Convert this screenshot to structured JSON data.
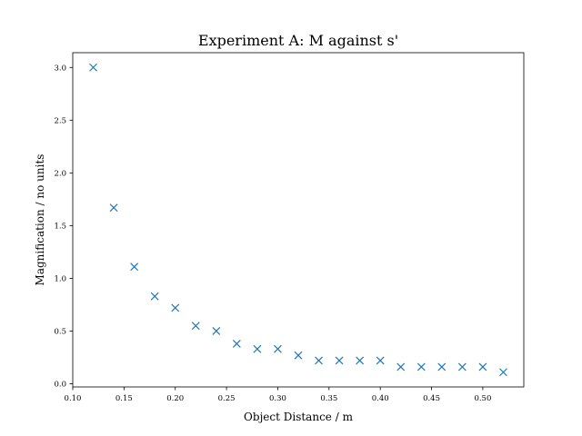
{
  "chart_data": {
    "type": "scatter",
    "title": "Experiment A: M against s'",
    "xlabel": "Object Distance / m",
    "ylabel": "Magnification / no units",
    "xlim": [
      0.1,
      0.54
    ],
    "ylim": [
      -0.03,
      3.14
    ],
    "xticks": [
      0.1,
      0.15,
      0.2,
      0.25,
      0.3,
      0.35,
      0.4,
      0.45,
      0.5
    ],
    "xtick_labels": [
      "0.10",
      "0.15",
      "0.20",
      "0.25",
      "0.30",
      "0.35",
      "0.40",
      "0.45",
      "0.50"
    ],
    "yticks": [
      0.0,
      0.5,
      1.0,
      1.5,
      2.0,
      2.5,
      3.0
    ],
    "ytick_labels": [
      "0.0",
      "0.5",
      "1.0",
      "1.5",
      "2.0",
      "2.5",
      "3.0"
    ],
    "grid": false,
    "marker": "x",
    "color": "#1f77b4",
    "x": [
      0.12,
      0.14,
      0.16,
      0.18,
      0.2,
      0.22,
      0.24,
      0.26,
      0.28,
      0.3,
      0.32,
      0.34,
      0.36,
      0.38,
      0.4,
      0.42,
      0.44,
      0.46,
      0.48,
      0.5,
      0.52
    ],
    "y": [
      3.0,
      1.67,
      1.11,
      0.83,
      0.72,
      0.55,
      0.5,
      0.38,
      0.33,
      0.33,
      0.27,
      0.22,
      0.22,
      0.22,
      0.22,
      0.16,
      0.16,
      0.16,
      0.16,
      0.16,
      0.11
    ]
  }
}
